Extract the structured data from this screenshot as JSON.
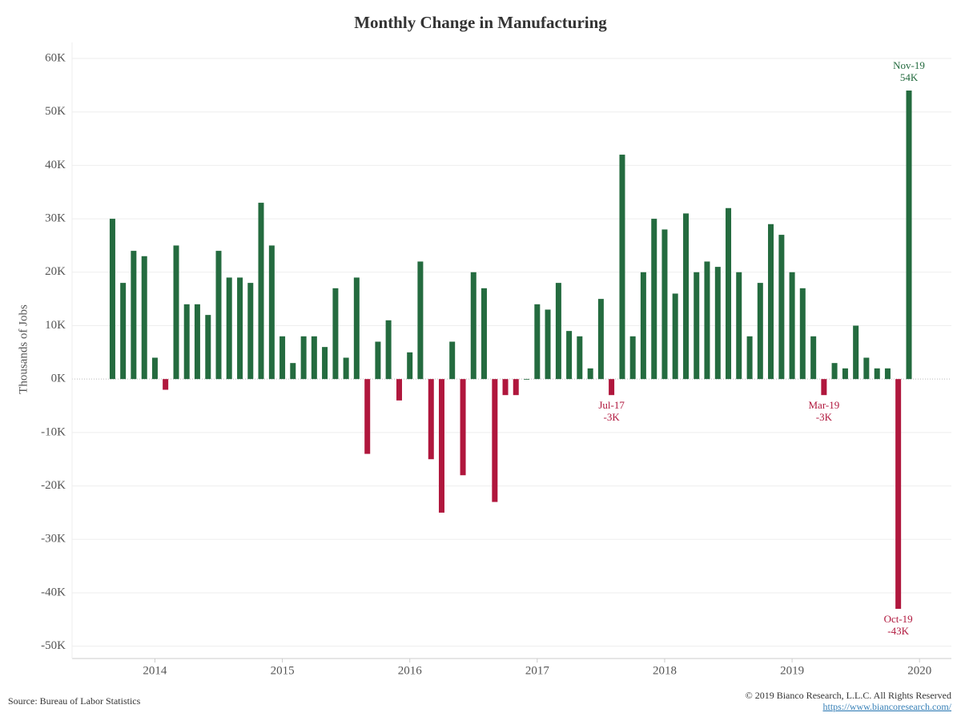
{
  "chart_data": {
    "type": "bar",
    "title": "Monthly Change in Manufacturing",
    "y_label": "Thousands of Jobs",
    "source": "Source: Bureau of Labor Statistics",
    "copyright": "© 2019 Bianco Research, L.L.C. All Rights Reserved",
    "url": "https://www.biancoresearch.com/",
    "colors": {
      "positive": "#246b3f",
      "negative": "#b0173d"
    },
    "x": [
      2013.667,
      2013.75,
      2013.833,
      2013.917,
      2014.0,
      2014.083,
      2014.167,
      2014.25,
      2014.333,
      2014.417,
      2014.5,
      2014.583,
      2014.667,
      2014.75,
      2014.833,
      2014.917,
      2015.0,
      2015.083,
      2015.167,
      2015.25,
      2015.333,
      2015.417,
      2015.5,
      2015.583,
      2015.667,
      2015.75,
      2015.833,
      2015.917,
      2016.0,
      2016.083,
      2016.167,
      2016.25,
      2016.333,
      2016.417,
      2016.5,
      2016.583,
      2016.667,
      2016.75,
      2016.833,
      2016.917,
      2017.0,
      2017.083,
      2017.167,
      2017.25,
      2017.333,
      2017.417,
      2017.5,
      2017.583,
      2017.667,
      2017.75,
      2017.833,
      2017.917,
      2018.0,
      2018.083,
      2018.167,
      2018.25,
      2018.333,
      2018.417,
      2018.5,
      2018.583,
      2018.667,
      2018.75,
      2018.833,
      2018.917,
      2019.0,
      2019.083,
      2019.167,
      2019.25,
      2019.333,
      2019.417,
      2019.5,
      2019.583,
      2019.667,
      2019.75,
      2019.833,
      2019.917
    ],
    "values": [
      30,
      18,
      24,
      23,
      4,
      -2,
      25,
      14,
      14,
      12,
      24,
      19,
      19,
      18,
      33,
      25,
      8,
      3,
      8,
      8,
      6,
      17,
      4,
      19,
      -14,
      7,
      11,
      -4,
      5,
      22,
      -15,
      -25,
      7,
      -18,
      20,
      17,
      -23,
      -3,
      -3,
      0,
      14,
      13,
      18,
      9,
      8,
      2,
      15,
      -3,
      42,
      8,
      20,
      30,
      28,
      16,
      31,
      20,
      22,
      21,
      32,
      20,
      8,
      18,
      29,
      27,
      20,
      17,
      8,
      -3,
      3,
      2,
      10,
      4,
      2,
      2,
      -43,
      54
    ],
    "point_labels": [
      null,
      null,
      null,
      null,
      null,
      null,
      null,
      null,
      null,
      null,
      null,
      null,
      null,
      null,
      null,
      null,
      null,
      null,
      null,
      null,
      null,
      null,
      null,
      null,
      null,
      null,
      null,
      null,
      null,
      null,
      null,
      null,
      null,
      null,
      null,
      null,
      null,
      null,
      null,
      null,
      null,
      null,
      null,
      null,
      null,
      null,
      null,
      "Jul-17",
      null,
      null,
      null,
      null,
      null,
      null,
      null,
      null,
      null,
      null,
      null,
      null,
      null,
      null,
      null,
      null,
      null,
      null,
      null,
      "Mar-19",
      null,
      null,
      null,
      null,
      null,
      null,
      "Oct-19",
      "Nov-19"
    ],
    "value_labels": [
      null,
      null,
      null,
      null,
      null,
      null,
      null,
      null,
      null,
      null,
      null,
      null,
      null,
      null,
      null,
      null,
      null,
      null,
      null,
      null,
      null,
      null,
      null,
      null,
      null,
      null,
      null,
      null,
      null,
      null,
      null,
      null,
      null,
      null,
      null,
      null,
      null,
      null,
      null,
      null,
      null,
      null,
      null,
      null,
      null,
      null,
      null,
      "-3K",
      null,
      null,
      null,
      null,
      null,
      null,
      null,
      null,
      null,
      null,
      null,
      null,
      null,
      null,
      null,
      null,
      null,
      null,
      null,
      "-3K",
      null,
      null,
      null,
      null,
      null,
      null,
      "-43K",
      "54K"
    ],
    "xlim": [
      2013.35,
      2020.25
    ],
    "xticks": [
      2014,
      2015,
      2016,
      2017,
      2018,
      2019,
      2020
    ],
    "ylim": [
      -52,
      63
    ],
    "yticks": [
      {
        "value": 60,
        "label": "60K"
      },
      {
        "value": 50,
        "label": "50K"
      },
      {
        "value": 40,
        "label": "40K"
      },
      {
        "value": 30,
        "label": "30K"
      },
      {
        "value": 20,
        "label": "20K"
      },
      {
        "value": 10,
        "label": "10K"
      },
      {
        "value": 0,
        "label": "0K"
      },
      {
        "value": -10,
        "label": "-10K"
      },
      {
        "value": -20,
        "label": "-20K"
      },
      {
        "value": -30,
        "label": "-30K"
      },
      {
        "value": -40,
        "label": "-40K"
      },
      {
        "value": -50,
        "label": "-50K"
      }
    ],
    "grid": true
  }
}
